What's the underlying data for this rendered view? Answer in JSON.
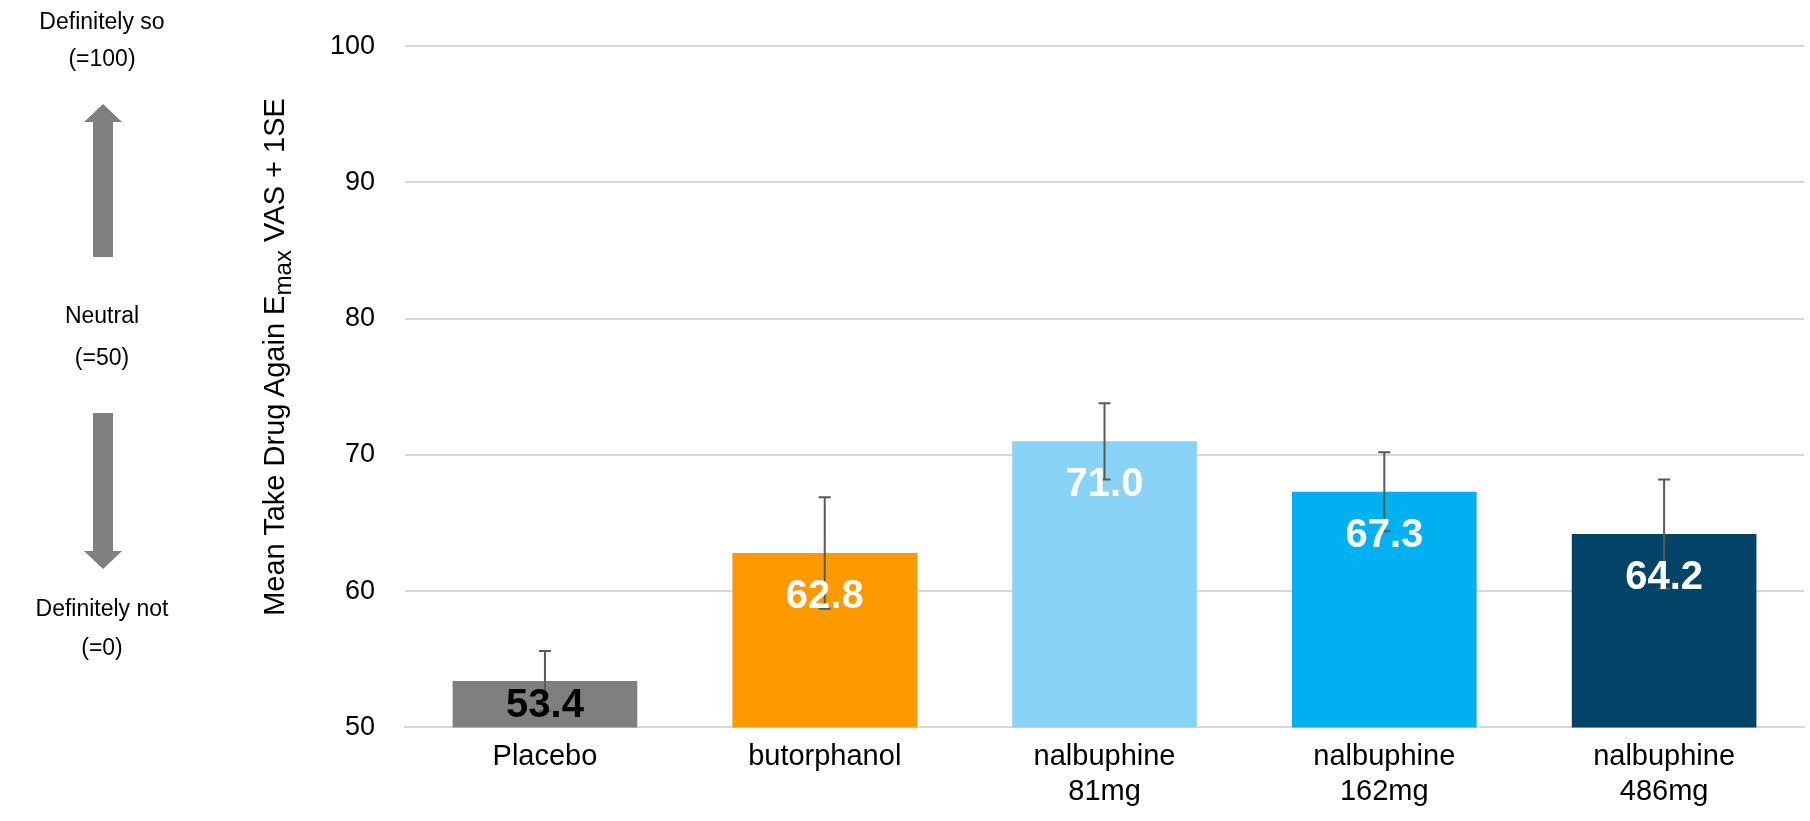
{
  "chart_data": {
    "type": "bar",
    "categories": [
      "Placebo",
      "butorphanol",
      "nalbuphine 81mg",
      "nalbuphine 162mg",
      "nalbuphine 486mg"
    ],
    "values": [
      53.4,
      62.8,
      71.0,
      67.3,
      64.2
    ],
    "colors": [
      "#7f7f7f",
      "#ff9900",
      "#89d3f7",
      "#00b0f0",
      "#024468"
    ],
    "errors": [
      2.2,
      4.1,
      2.8,
      2.9,
      4.0
    ],
    "ylabel": "Mean Take Drug Again E$_{max}$ VAS + 1SE",
    "ylim": [
      50,
      100
    ],
    "yticks": [
      50,
      60,
      70,
      80,
      90,
      100
    ],
    "grid": "y",
    "value_labels": [
      "53.4",
      "62.8",
      "71.0",
      "67.3",
      "64.2"
    ],
    "annotations": [
      "Definitely so",
      "(=100)",
      "Neutral",
      "(=50)",
      "Definitely not",
      "(=0)"
    ]
  }
}
